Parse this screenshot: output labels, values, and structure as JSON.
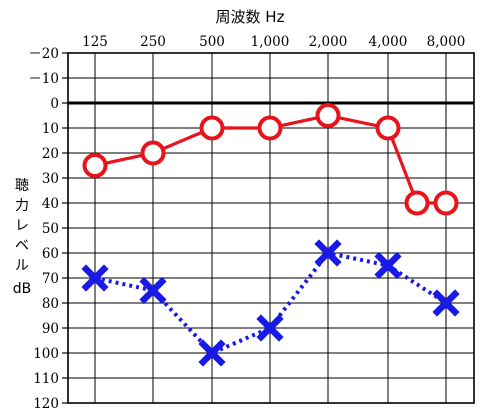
{
  "chart_data": {
    "type": "line",
    "title": "",
    "xlabel": "周波数 Hz",
    "ylabel_lines": [
      "聴",
      "力",
      "レ",
      "ベ",
      "ル",
      "dB"
    ],
    "categories": [
      "125",
      "250",
      "500",
      "1,000",
      "2,000",
      "4,000",
      "8,000"
    ],
    "x_positions": [
      125,
      250,
      500,
      1000,
      2000,
      4000,
      6000,
      8000
    ],
    "yticks": [
      "－20",
      "－10",
      "0",
      "10",
      "20",
      "30",
      "40",
      "50",
      "60",
      "70",
      "80",
      "90",
      "100",
      "110",
      "120"
    ],
    "ylim": [
      -20,
      120
    ],
    "y_inverted": true,
    "grid": true,
    "reference_line": 0,
    "series": [
      {
        "marker": "circle",
        "line_style": "solid",
        "color": "#e8141c",
        "x": [
          125,
          250,
          500,
          1000,
          2000,
          4000,
          6000,
          8000
        ],
        "values": [
          25,
          20,
          10,
          10,
          5,
          10,
          40,
          40
        ]
      },
      {
        "marker": "cross",
        "line_style": "dotted",
        "color": "#1a1ae6",
        "x": [
          125,
          250,
          500,
          1000,
          2000,
          4000,
          8000
        ],
        "values": [
          70,
          75,
          100,
          90,
          60,
          65,
          80
        ]
      }
    ]
  }
}
